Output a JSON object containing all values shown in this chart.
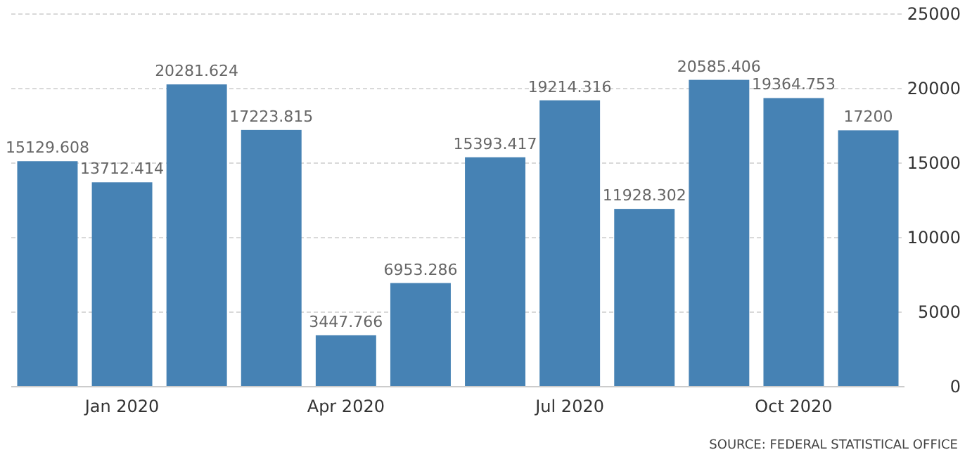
{
  "chart_data": {
    "type": "bar",
    "categories": [
      null,
      "Jan 2020",
      null,
      null,
      "Apr 2020",
      null,
      null,
      "Jul 2020",
      null,
      null,
      "Oct 2020",
      null
    ],
    "values": [
      15129.608,
      13712.414,
      20281.624,
      17223.815,
      3447.766,
      6953.286,
      15393.417,
      19214.316,
      11928.302,
      20585.406,
      19364.753,
      17200
    ],
    "color": "#4682b4",
    "data_labels": true,
    "ylim": [
      0,
      25000
    ],
    "yticks": [
      0,
      5000,
      10000,
      15000,
      20000,
      25000
    ],
    "grid": "y",
    "annotations": [
      "SOURCE: FEDERAL STATISTICAL OFFICE"
    ]
  }
}
